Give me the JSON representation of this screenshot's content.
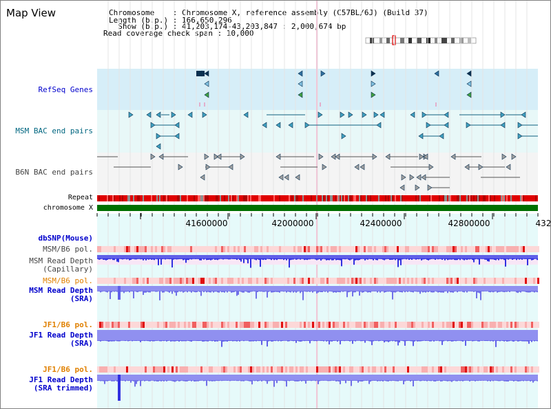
{
  "title": "Map View",
  "info": {
    "chromosome_line": "Chromosome    : Chromosome X, reference assembly (C57BL/6J) (Build 37)",
    "length_line": "Length (b.p.) : 166,650,296",
    "show_line": "  Show (b.p.) : 41,203,174-43,203,847 : 2,000,674 bp",
    "coverage_line": "Read coverage check span : 10,000"
  },
  "tracks": {
    "refseq": "RefSeq Genes",
    "msm_bac": "MSM BAC end pairs",
    "b6n_bac": "B6N BAC end pairs",
    "repeat": "Repeat",
    "chromosome": "chromosome X",
    "dbsnp": "dbSNP(Mouse)",
    "msm_b6_pol_1": "MSM/B6 pol.",
    "msm_read_depth_cap": "MSM Read Depth\n(Capillary)",
    "msm_b6_pol_2": "MSM/B6 pol.",
    "msm_read_depth_sra": "MSM Read Depth\n(SRA)",
    "jf1_b6_pol_1": "JF1/B6 pol.",
    "jf1_read_depth_sra": "JF1 Read Depth\n(SRA)",
    "jf1_b6_pol_2": "JF1/B6 pol.",
    "jf1_read_depth_trimmed": "JF1 Read Depth\n(SRA trimmed)"
  },
  "axis": {
    "ticks": [
      "41600000",
      "42000000",
      "42400000",
      "42800000",
      "432"
    ]
  },
  "colors": {
    "refseq_bg": "#d6eef8",
    "bac_bg": "#e8f8f8",
    "b6n_bg": "#f4f4f4",
    "lower_bg": "#e6fafa",
    "chromosome": "#007000",
    "repeat": "#e00000",
    "depth_blue": "#3030e0",
    "depth_light": "#9090f0",
    "pol_pink": "#f8b0b0"
  }
}
